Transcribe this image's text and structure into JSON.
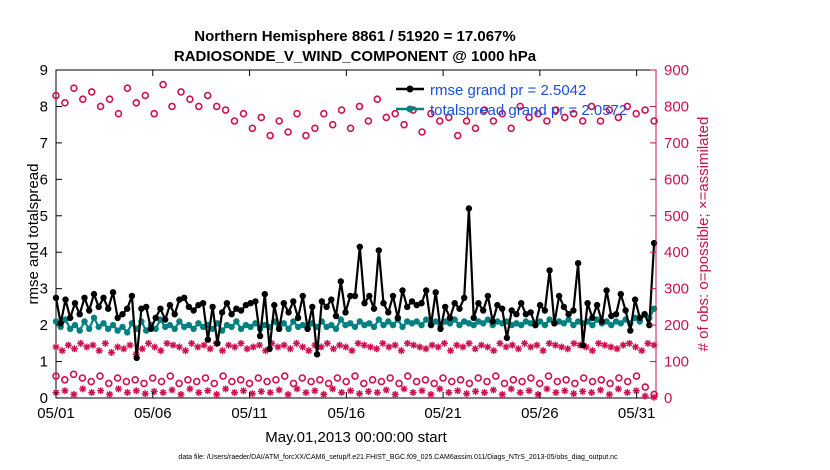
{
  "chart_data": {
    "type": "line",
    "title_line1": "Northern Hemisphere 8861 / 51920 = 17.067%",
    "title_line2": "RADIOSONDE_V_WIND_COMPONENT @ 1000 hPa",
    "xlabel": "May.01,2013 00:00:00 start",
    "ylabel_left": "rmse and totalspread",
    "ylabel_right": "# of obs: o=possible; ×=assimilated",
    "footer": "data file: /Users/raeder/DAI/ATM_forcXX/CAM6_setup/f.e21.FHIST_BGC.f09_025.CAM6assim.011/Diags_NTrS_2013-05/obs_diag_output.nc",
    "x_ticks": [
      {
        "day": 1,
        "label": "05/01"
      },
      {
        "day": 6,
        "label": "05/06"
      },
      {
        "day": 11,
        "label": "05/11"
      },
      {
        "day": 16,
        "label": "05/16"
      },
      {
        "day": 21,
        "label": "05/21"
      },
      {
        "day": 26,
        "label": "05/26"
      },
      {
        "day": 31,
        "label": "05/31"
      }
    ],
    "x_range": [
      1,
      32
    ],
    "y_left_range": [
      0,
      9
    ],
    "y_left_ticks": [
      "0",
      "1",
      "2",
      "3",
      "4",
      "5",
      "6",
      "7",
      "8",
      "9"
    ],
    "y_right_range": [
      0,
      900
    ],
    "y_right_ticks": [
      "0",
      "100",
      "200",
      "300",
      "400",
      "500",
      "600",
      "700",
      "800",
      "900"
    ],
    "legend": [
      {
        "label": "rmse grand pr = 2.5042",
        "color": "#000000"
      },
      {
        "label": "totalspread grand pr = 2.0572",
        "color": "#008080"
      }
    ],
    "colors": {
      "rmse": "#000000",
      "spread": "#008080",
      "obs": "#cc1150",
      "legend_text": "#1a4fe0"
    },
    "series": [
      {
        "name": "rmse",
        "axis": "left",
        "color": "#000000",
        "marker": "filled-circle",
        "values": [
          2.75,
          2.05,
          2.7,
          2.2,
          2.6,
          2.3,
          2.75,
          2.4,
          2.85,
          2.5,
          2.75,
          2.45,
          2.9,
          2.2,
          2.3,
          2.45,
          2.8,
          1.1,
          2.45,
          2.5,
          1.9,
          2.2,
          2.45,
          2.15,
          2.55,
          2.3,
          2.7,
          2.75,
          2.5,
          2.4,
          2.55,
          2.6,
          1.6,
          2.5,
          1.5,
          2.35,
          2.6,
          2.3,
          2.45,
          2.4,
          2.55,
          2.6,
          2.65,
          1.7,
          2.85,
          1.35,
          2.55,
          1.9,
          2.6,
          2.35,
          2.65,
          2.2,
          2.8,
          1.9,
          2.5,
          1.2,
          2.65,
          2.5,
          2.7,
          2.25,
          3.2,
          2.35,
          2.8,
          2.8,
          4.15,
          2.6,
          2.8,
          2.45,
          4.05,
          2.6,
          2.35,
          2.8,
          2.2,
          2.95,
          2.5,
          2.65,
          2.55,
          2.6,
          2.95,
          2.0,
          2.9,
          1.9,
          2.5,
          2.2,
          2.6,
          2.45,
          2.75,
          5.2,
          2.2,
          2.6,
          2.4,
          2.8,
          2.1,
          2.55,
          2.45,
          1.65,
          2.4,
          2.3,
          2.6,
          2.3,
          2.35,
          2.0,
          2.55,
          2.4,
          3.5,
          2.05,
          2.8,
          2.5,
          2.3,
          2.4,
          3.7,
          1.45,
          2.6,
          2.2,
          2.55,
          2.1,
          2.95,
          2.25,
          2.3,
          2.85,
          2.4,
          1.85,
          2.7,
          2.2,
          2.3,
          2.0,
          4.25
        ]
      },
      {
        "name": "totalspread",
        "axis": "left",
        "color": "#008080",
        "marker": "filled-circle",
        "values": [
          2.1,
          1.95,
          2.15,
          1.9,
          2.0,
          1.85,
          2.1,
          1.9,
          2.2,
          1.95,
          2.05,
          1.9,
          2.0,
          1.85,
          1.95,
          1.8,
          2.05,
          1.9,
          2.1,
          1.85,
          2.0,
          1.9,
          2.15,
          1.95,
          2.0,
          1.9,
          2.1,
          1.95,
          2.0,
          1.9,
          2.05,
          1.95,
          2.0,
          1.9,
          2.05,
          1.85,
          2.0,
          1.95,
          2.1,
          1.9,
          2.0,
          1.95,
          2.05,
          1.9,
          2.0,
          1.95,
          2.1,
          1.9,
          2.05,
          1.9,
          2.1,
          1.95,
          2.0,
          1.9,
          2.05,
          1.95,
          2.1,
          1.95,
          2.0,
          1.9,
          2.15,
          2.0,
          2.05,
          1.95,
          2.1,
          2.0,
          2.05,
          1.95,
          2.15,
          2.0,
          2.1,
          2.0,
          2.15,
          1.95,
          2.1,
          2.05,
          2.1,
          2.0,
          2.15,
          2.05,
          2.1,
          2.0,
          2.1,
          2.05,
          2.15,
          2.0,
          2.1,
          2.05,
          2.0,
          2.1,
          2.05,
          2.15,
          2.0,
          2.1,
          2.05,
          2.1,
          2.0,
          2.05,
          2.0,
          2.1,
          2.05,
          2.0,
          2.1,
          2.0,
          2.15,
          2.05,
          2.1,
          2.05,
          2.15,
          2.0,
          2.1,
          2.05,
          2.1,
          2.0,
          2.15,
          2.05,
          2.1,
          2.0,
          2.1,
          2.05,
          2.15,
          2.05,
          2.2,
          2.1,
          2.3,
          2.2,
          2.45
        ]
      },
      {
        "name": "possible_0000",
        "axis": "right",
        "color": "#cc1150",
        "marker": "open-circle",
        "values": [
          830,
          810,
          850,
          820,
          840,
          800,
          820,
          780,
          850,
          810,
          830,
          780,
          860,
          800,
          840,
          820,
          800,
          830,
          800,
          790,
          760,
          780,
          740,
          770,
          720,
          760,
          730,
          780,
          720,
          740,
          780,
          750,
          790,
          740,
          800,
          760,
          820,
          770,
          780,
          750,
          790,
          730,
          780,
          760,
          770,
          720,
          760,
          740,
          790,
          760,
          780,
          740,
          800,
          770,
          780,
          760,
          790,
          770,
          780,
          760,
          800,
          760,
          790,
          770,
          800,
          780,
          790,
          760
        ]
      },
      {
        "name": "assimilated_0000",
        "axis": "right",
        "color": "#cc1150",
        "marker": "asterisk",
        "values": [
          140,
          130,
          145,
          135,
          150,
          140,
          145,
          130,
          150,
          125,
          140,
          135,
          145,
          120,
          135,
          150,
          140,
          130,
          150,
          145,
          140,
          130,
          150,
          140,
          145,
          135,
          150,
          130,
          145,
          140,
          150,
          135,
          140,
          145,
          130,
          150,
          140,
          145,
          135,
          150,
          140,
          130,
          145,
          140,
          150,
          135,
          145,
          140,
          130,
          150,
          145,
          140,
          135,
          150,
          140,
          145,
          130,
          150,
          145,
          140,
          135,
          145,
          140,
          150,
          130,
          145,
          140,
          150,
          135,
          145,
          140,
          130,
          150,
          140,
          145,
          135,
          150,
          140,
          145,
          130,
          150,
          145,
          140,
          135,
          150,
          145,
          140,
          130,
          150,
          145,
          140,
          135,
          145,
          150,
          140,
          130,
          150,
          145
        ]
      },
      {
        "name": "possible_other",
        "axis": "right",
        "color": "#cc1150",
        "marker": "open-circle",
        "values": [
          60,
          50,
          65,
          55,
          45,
          60,
          40,
          55,
          45,
          50,
          40,
          55,
          45,
          60,
          40,
          50,
          45,
          55,
          40,
          60,
          45,
          50,
          40,
          55,
          45,
          50,
          60,
          40,
          55,
          45,
          50,
          40,
          55,
          45,
          60,
          40,
          50,
          45,
          55,
          40,
          60,
          45,
          50,
          40,
          55,
          45,
          50,
          40,
          55,
          45,
          60,
          40,
          50,
          45,
          55,
          40,
          60,
          45,
          50,
          40,
          55,
          45,
          50,
          40,
          55,
          45,
          60,
          30,
          10
        ]
      },
      {
        "name": "assimilated_other",
        "axis": "right",
        "color": "#cc1150",
        "marker": "asterisk",
        "values": [
          15,
          20,
          10,
          25,
          15,
          20,
          10,
          25,
          15,
          20,
          12,
          18,
          15,
          22,
          10,
          25,
          15,
          20,
          10,
          25,
          15,
          20,
          12,
          18,
          15,
          22,
          10,
          25,
          15,
          20,
          10,
          25,
          15,
          20,
          12,
          18,
          15,
          22,
          10,
          25,
          15,
          20,
          10,
          25,
          15,
          20,
          12,
          18,
          15,
          22,
          10,
          25,
          15,
          20,
          10,
          25,
          15,
          20,
          12,
          18,
          15,
          22,
          10,
          25,
          15,
          20,
          5,
          2
        ]
      }
    ]
  }
}
